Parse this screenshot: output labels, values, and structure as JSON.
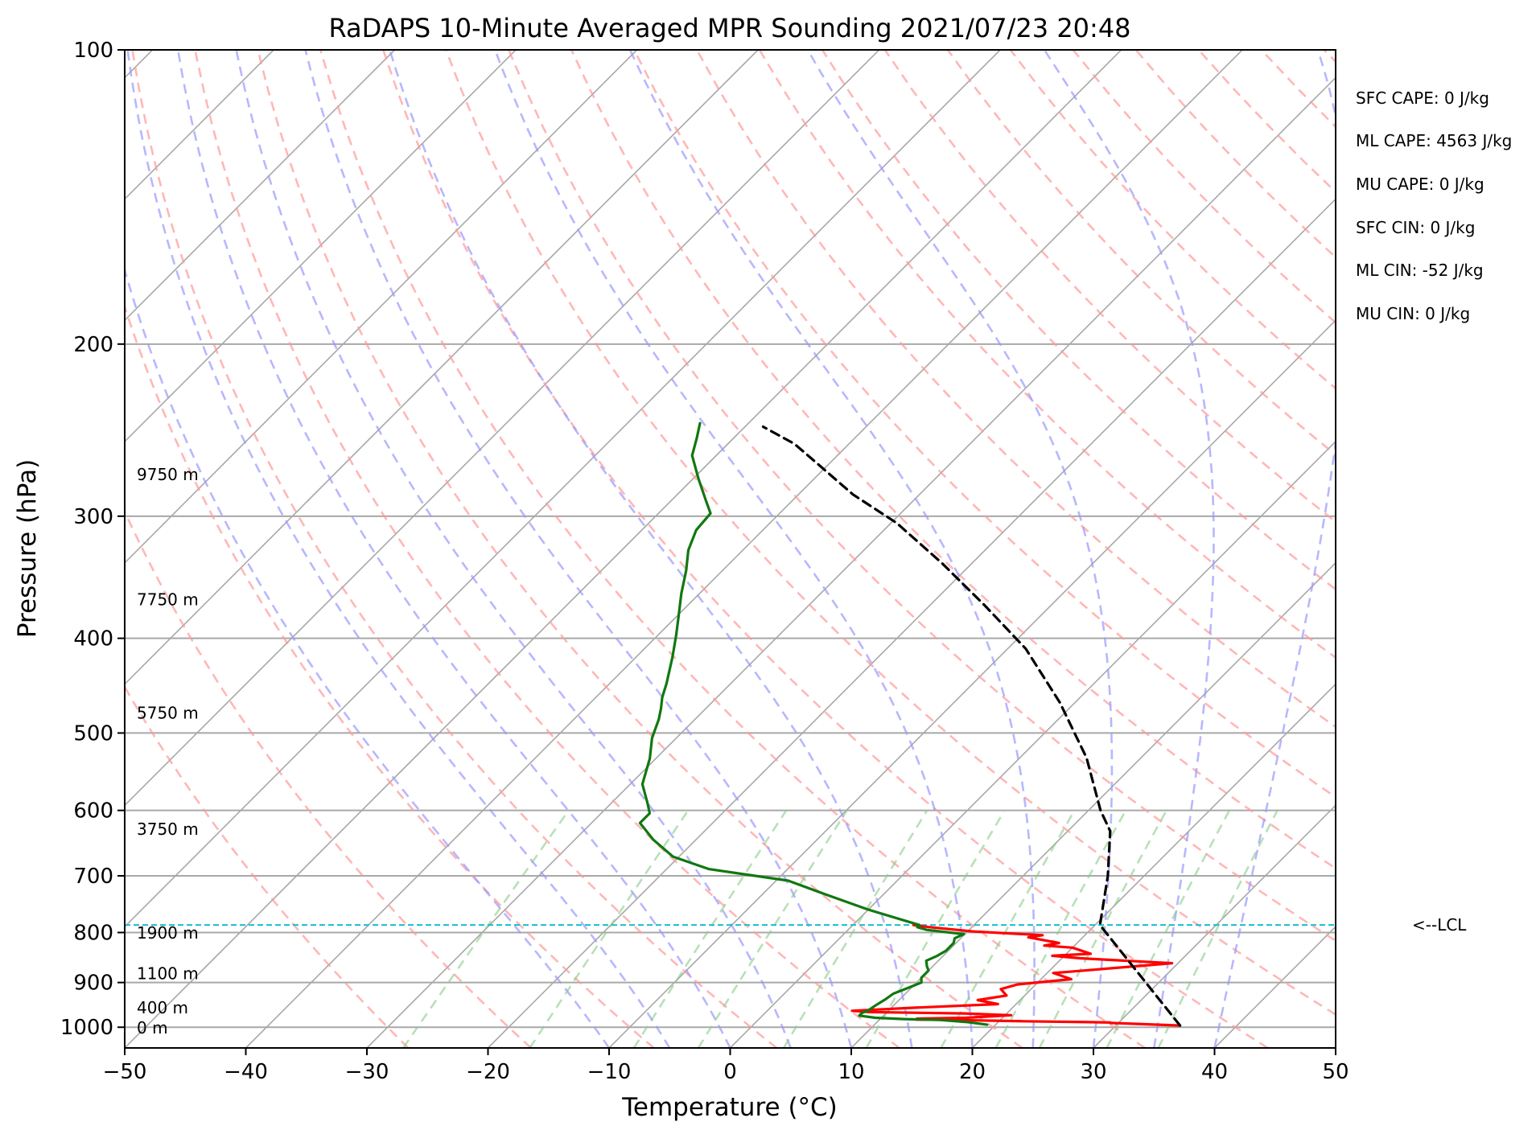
{
  "chart_data": {
    "type": "line",
    "title": "RaDAPS 10-Minute Averaged MPR Sounding 2021/07/23 20:48",
    "xlabel": "Temperature (°C)",
    "ylabel": "Pressure (hPa)",
    "xlim": [
      -50,
      50
    ],
    "ylim": [
      1050,
      100
    ],
    "y_scale": "log",
    "x_ticks": [
      -50,
      -40,
      -30,
      -20,
      -10,
      0,
      10,
      20,
      30,
      40,
      50
    ],
    "x_tick_labels": [
      "−50",
      "−40",
      "−30",
      "−20",
      "−10",
      "0",
      "10",
      "20",
      "30",
      "40",
      "50"
    ],
    "y_ticks": [
      1000,
      900,
      800,
      700,
      600,
      500,
      400,
      300,
      200,
      100
    ],
    "y_tick_labels": [
      "1000",
      "900",
      "800",
      "700",
      "600",
      "500",
      "400",
      "300",
      "200",
      "100"
    ],
    "skew": 35,
    "grid": true,
    "colors": {
      "temperature": "#ff0000",
      "dewpoint": "#107810",
      "parcel": "#000000",
      "lcl": "#17becf",
      "dry_adiabats": "#ff9999",
      "moist_adiabats": "#9999ff",
      "mixing_ratio": "#88cc88",
      "isotherms": "#a8a8a8"
    },
    "series": [
      {
        "key": "temperature",
        "points": [
          [
            35.3,
            996
          ],
          [
            30.5,
            991
          ],
          [
            29.3,
            990
          ],
          [
            29.3,
            989
          ],
          [
            27.5,
            988
          ],
          [
            22.0,
            986
          ],
          [
            16.0,
            983
          ],
          [
            13.0,
            982
          ],
          [
            13.0,
            980
          ],
          [
            17.0,
            978
          ],
          [
            20.5,
            972
          ],
          [
            16.5,
            968
          ],
          [
            8.5,
            965
          ],
          [
            7.0,
            962
          ],
          [
            12.0,
            955
          ],
          [
            18.5,
            947
          ],
          [
            16.5,
            938
          ],
          [
            18.5,
            928
          ],
          [
            17.5,
            914
          ],
          [
            18.5,
            904
          ],
          [
            22.5,
            893
          ],
          [
            20.5,
            880
          ],
          [
            22.8,
            875
          ],
          [
            29.5,
            860
          ],
          [
            21.5,
            850
          ],
          [
            19.0,
            845
          ],
          [
            22.0,
            841
          ],
          [
            20.0,
            829
          ],
          [
            17.5,
            825
          ],
          [
            18.5,
            820
          ],
          [
            15.5,
            809
          ],
          [
            16.5,
            805
          ],
          [
            10.5,
            798
          ],
          [
            6.5,
            790
          ],
          [
            5.0,
            786
          ]
        ]
      },
      {
        "key": "dewpoint",
        "points": [
          [
            19.3,
            994
          ],
          [
            17.5,
            988
          ],
          [
            15.0,
            983
          ],
          [
            12.0,
            981
          ],
          [
            9.5,
            978
          ],
          [
            8.0,
            973
          ],
          [
            8.0,
            967
          ],
          [
            8.3,
            961
          ],
          [
            8.5,
            950
          ],
          [
            8.8,
            937
          ],
          [
            9.0,
            924
          ],
          [
            9.6,
            914
          ],
          [
            10.4,
            900
          ],
          [
            10.0,
            890
          ],
          [
            10.0,
            875
          ],
          [
            9.5,
            866
          ],
          [
            9.0,
            855
          ],
          [
            9.5,
            845
          ],
          [
            9.8,
            835
          ],
          [
            9.8,
            820
          ],
          [
            9.5,
            811
          ],
          [
            9.9,
            803
          ],
          [
            6.5,
            795
          ],
          [
            5.5,
            790
          ],
          [
            5.5,
            786
          ],
          [
            0,
            758
          ],
          [
            -5.0,
            730
          ],
          [
            -9.0,
            708
          ],
          [
            -16.5,
            689
          ],
          [
            -20.5,
            669
          ],
          [
            -23.5,
            643
          ],
          [
            -26.0,
            618
          ],
          [
            -26.0,
            604
          ],
          [
            -27.0,
            590
          ],
          [
            -29.0,
            564
          ],
          [
            -30.5,
            531
          ],
          [
            -32.0,
            506
          ],
          [
            -33.0,
            484
          ],
          [
            -33.7,
            472
          ],
          [
            -34.5,
            460
          ],
          [
            -35.3,
            445
          ],
          [
            -37.0,
            418
          ],
          [
            -38.5,
            397
          ],
          [
            -40.0,
            378
          ],
          [
            -41.5,
            360
          ],
          [
            -43.0,
            341
          ],
          [
            -44.5,
            325
          ],
          [
            -45.5,
            310
          ],
          [
            -45.7,
            298
          ],
          [
            -47.0,
            290
          ],
          [
            -49.5,
            275
          ],
          [
            -52.0,
            260
          ],
          [
            -53.0,
            250
          ],
          [
            -54.0,
            241
          ]
        ]
      },
      {
        "key": "parcel",
        "points": [
          [
            35.3,
            996
          ],
          [
            20.4,
            786
          ],
          [
            17.0,
            700
          ],
          [
            13.5,
            630
          ],
          [
            11.0,
            600
          ],
          [
            5.5,
            530
          ],
          [
            -1.3,
            465
          ],
          [
            -8.5,
            410
          ],
          [
            -15.5,
            370
          ],
          [
            -22.5,
            335
          ],
          [
            -29.5,
            305
          ],
          [
            -35.5,
            285
          ],
          [
            -41.0,
            265
          ],
          [
            -44.5,
            253
          ],
          [
            -48.5,
            243
          ]
        ]
      }
    ],
    "lcl_pressure": 786,
    "lcl_label": "<--LCL",
    "height_labels": [
      {
        "text": "0 m",
        "p": 1001
      },
      {
        "text": "400 m",
        "p": 955
      },
      {
        "text": "1100 m",
        "p": 881
      },
      {
        "text": "1900 m",
        "p": 801
      },
      {
        "text": "3750 m",
        "p": 627
      },
      {
        "text": "5750 m",
        "p": 477
      },
      {
        "text": "7750 m",
        "p": 365
      },
      {
        "text": "9750 m",
        "p": 272
      }
    ],
    "annotations": [
      "SFC CAPE: 0 J/kg",
      "ML CAPE: 4563 J/kg",
      "MU CAPE: 0 J/kg",
      "SFC CIN: 0 J/kg",
      "ML CIN: -52 J/kg",
      "MU CIN: 0 J/kg"
    ]
  }
}
